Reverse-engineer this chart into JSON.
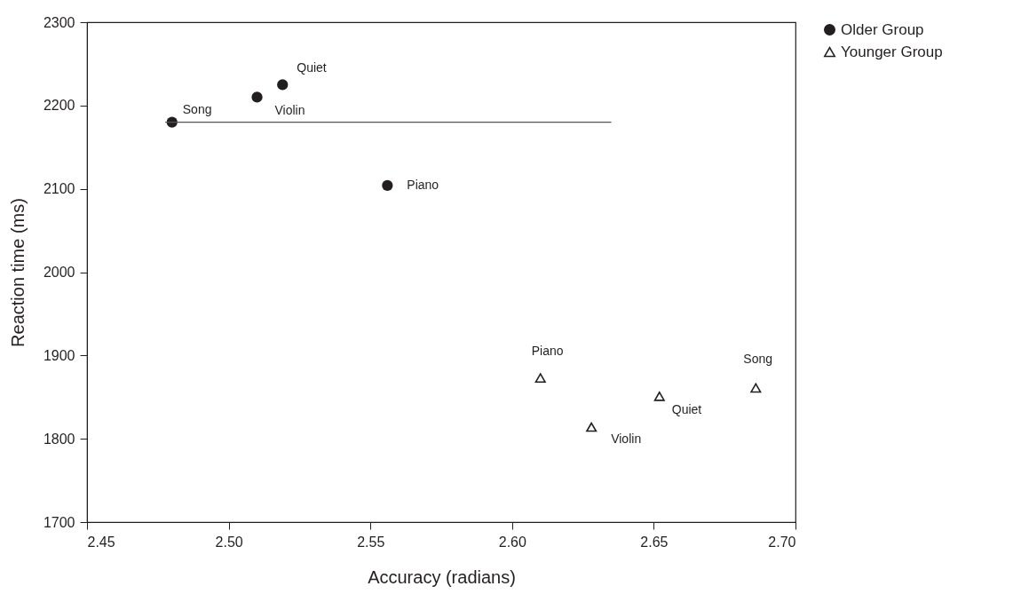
{
  "chart_data": {
    "type": "scatter",
    "xlabel": "Accuracy (radians)",
    "ylabel": "Reaction time (ms)",
    "xlim": [
      2.45,
      2.7
    ],
    "xticks": [
      {
        "value": 2.45,
        "label": "2.45"
      },
      {
        "value": 2.5,
        "label": "2.50"
      },
      {
        "value": 2.55,
        "label": "2.55"
      },
      {
        "value": 2.6,
        "label": "2.60"
      },
      {
        "value": 2.65,
        "label": "2.65"
      },
      {
        "value": 2.7,
        "label": "2.70"
      }
    ],
    "ylim": [
      1700,
      2300
    ],
    "yticks": [
      1700,
      1800,
      1900,
      2000,
      2100,
      2200,
      2300
    ],
    "grid": false,
    "legend": "top right",
    "series": [
      {
        "name": "Older Group",
        "color": "#231f20",
        "marker": "circle",
        "x": [
          2.48,
          2.51,
          2.519,
          2.556
        ],
        "values": [
          2180,
          2210,
          2225,
          2104
        ]
      },
      {
        "name": "Younger Group",
        "color": "#231f20",
        "marker": "triangle",
        "x": [
          2.61,
          2.628,
          2.652,
          2.686
        ],
        "values": [
          1873,
          1814,
          1851,
          1861
        ]
      },
      {
        "type": "line",
        "color": "#555555",
        "marker": "none",
        "line_style": "solid",
        "x": [
          2.4776,
          2.635
        ],
        "values": [
          2180,
          2180
        ]
      }
    ],
    "annotations": [
      {
        "text": "Song",
        "x": 2.48,
        "y": 2180
      },
      {
        "text": "Violin",
        "x": 2.51,
        "y": 2210
      },
      {
        "text": "Quiet",
        "x": 2.519,
        "y": 2225
      },
      {
        "text": "Piano",
        "x": 2.556,
        "y": 2104
      },
      {
        "text": "Piano",
        "x": 2.61,
        "y": 1873
      },
      {
        "text": "Violin",
        "x": 2.628,
        "y": 1814
      },
      {
        "text": "Quiet",
        "x": 2.652,
        "y": 1851
      },
      {
        "text": "Song",
        "x": 2.686,
        "y": 1861
      }
    ]
  }
}
